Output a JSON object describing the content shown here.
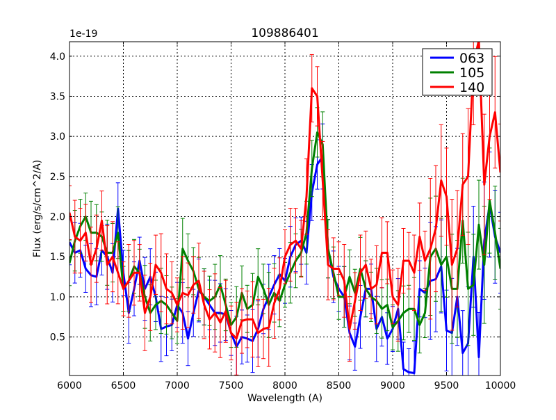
{
  "chart_data": {
    "type": "line",
    "title": "109886401",
    "xlabel": "Wavelength (A)",
    "ylabel": "Flux (erg/s/cm^2/A)",
    "y_offset_label": "1e-19",
    "xlim": [
      6000,
      10000
    ],
    "ylim": [
      0.02,
      4.18
    ],
    "xticks": [
      6000,
      6500,
      7000,
      7500,
      8000,
      8500,
      9000,
      9500,
      10000
    ],
    "xtick_labels": [
      "6000",
      "6500",
      "7000",
      "7500",
      "8000",
      "8500",
      "9000",
      "9500",
      "10000"
    ],
    "yticks": [
      0.5,
      1.0,
      1.5,
      2.0,
      2.5,
      3.0,
      3.5,
      4.0
    ],
    "ytick_labels": [
      "0.5",
      "1.0",
      "1.5",
      "2.0",
      "2.5",
      "3.0",
      "3.5",
      "4.0"
    ],
    "grid": true,
    "legend_position": "top-right",
    "x": [
      6000,
      6050,
      6100,
      6150,
      6200,
      6250,
      6300,
      6350,
      6400,
      6450,
      6500,
      6550,
      6600,
      6650,
      6700,
      6750,
      6800,
      6850,
      6900,
      6950,
      7000,
      7050,
      7100,
      7150,
      7200,
      7250,
      7300,
      7350,
      7400,
      7450,
      7500,
      7550,
      7600,
      7650,
      7700,
      7750,
      7800,
      7850,
      7900,
      7950,
      8000,
      8050,
      8100,
      8150,
      8200,
      8250,
      8300,
      8350,
      8400,
      8450,
      8500,
      8550,
      8600,
      8650,
      8700,
      8750,
      8800,
      8850,
      8900,
      8950,
      9000,
      9050,
      9100,
      9150,
      9200,
      9250,
      9300,
      9350,
      9400,
      9450,
      9500,
      9550,
      9600,
      9650,
      9700,
      9750,
      9800,
      9850,
      9900,
      9950,
      10000
    ],
    "series": [
      {
        "name": "063",
        "color": "#0000ff",
        "yerr": 0.35,
        "values": [
          1.68,
          1.55,
          1.58,
          1.35,
          1.27,
          1.25,
          1.58,
          1.5,
          1.3,
          2.1,
          1.3,
          0.8,
          1.1,
          1.45,
          1.1,
          1.25,
          1.0,
          0.6,
          0.63,
          0.65,
          0.9,
          0.8,
          0.48,
          0.8,
          1.08,
          1.0,
          0.9,
          0.8,
          0.8,
          0.78,
          0.55,
          0.38,
          0.5,
          0.48,
          0.45,
          0.6,
          0.85,
          1.0,
          1.15,
          1.28,
          1.2,
          1.5,
          1.65,
          1.7,
          1.55,
          2.3,
          2.65,
          2.75,
          1.6,
          1.25,
          1.1,
          1.0,
          0.55,
          0.38,
          0.75,
          1.1,
          1.1,
          0.6,
          0.75,
          0.48,
          0.6,
          0.85,
          0.1,
          0.06,
          0.05,
          1.1,
          1.05,
          1.2,
          1.22,
          1.38,
          0.58,
          0.55,
          1.0,
          0.3,
          0.42,
          1.5,
          0.25,
          1.7,
          2.15,
          1.75,
          1.55
        ]
      },
      {
        "name": "105",
        "color": "#008000",
        "yerr": 0.35,
        "values": [
          1.42,
          1.7,
          1.88,
          2.0,
          1.8,
          1.8,
          1.75,
          1.55,
          1.55,
          1.8,
          1.1,
          1.2,
          1.38,
          1.3,
          1.0,
          0.8,
          0.9,
          0.95,
          0.9,
          0.8,
          0.7,
          1.6,
          1.45,
          1.32,
          1.1,
          1.0,
          0.95,
          1.0,
          1.15,
          0.9,
          0.65,
          0.75,
          1.05,
          0.85,
          0.9,
          1.25,
          1.1,
          0.9,
          1.05,
          0.95,
          1.15,
          1.3,
          1.45,
          1.55,
          1.8,
          2.6,
          3.05,
          2.9,
          1.6,
          1.3,
          1.0,
          1.0,
          1.25,
          1.05,
          1.35,
          1.1,
          1.0,
          0.95,
          0.85,
          0.9,
          0.62,
          0.7,
          0.8,
          0.85,
          0.85,
          0.65,
          0.8,
          1.5,
          1.6,
          1.4,
          1.5,
          1.1,
          1.1,
          1.95,
          1.1,
          1.15,
          1.9,
          1.4,
          2.2,
          1.8,
          1.35
        ]
      },
      {
        "name": "140",
        "color": "#ff0000",
        "yerr": 0.42,
        "values": [
          2.05,
          1.75,
          1.7,
          1.8,
          1.4,
          1.6,
          1.95,
          1.4,
          1.5,
          1.3,
          1.1,
          1.2,
          1.3,
          1.3,
          0.8,
          1.0,
          1.4,
          1.3,
          1.1,
          1.05,
          0.9,
          1.05,
          1.02,
          1.15,
          1.2,
          0.9,
          0.72,
          0.8,
          0.68,
          0.82,
          0.55,
          0.48,
          0.7,
          0.72,
          0.72,
          0.55,
          0.6,
          0.62,
          0.92,
          1.1,
          1.5,
          1.65,
          1.7,
          1.6,
          2.25,
          3.6,
          3.5,
          2.45,
          1.4,
          1.35,
          1.35,
          1.2,
          0.6,
          0.95,
          1.3,
          1.4,
          1.1,
          1.15,
          1.55,
          1.55,
          1.0,
          0.9,
          1.45,
          1.45,
          1.3,
          1.75,
          1.45,
          1.6,
          1.85,
          2.45,
          2.25,
          1.4,
          1.6,
          2.4,
          2.5,
          3.9,
          4.2,
          2.4,
          3.0,
          3.3,
          2.55
        ]
      }
    ]
  }
}
